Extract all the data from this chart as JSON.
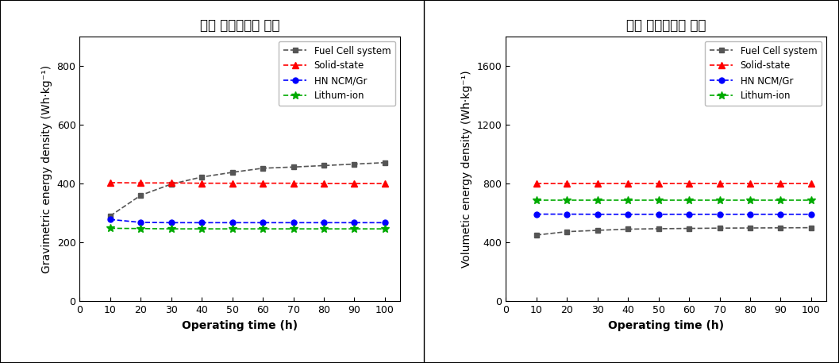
{
  "left_title": "질량 에너지밀도 예측",
  "right_title": "부피 에너지밀도 예측",
  "xlabel": "Operating time (h)",
  "left_ylabel": "Gravimetric energy density (Wh·kg⁻¹)",
  "right_ylabel": "Volumetic energy density (Wh·kg⁻¹)",
  "x": [
    10,
    20,
    30,
    40,
    50,
    60,
    70,
    80,
    90,
    100
  ],
  "left_fuel_cell": [
    290,
    360,
    398,
    422,
    438,
    452,
    456,
    461,
    466,
    471
  ],
  "left_solid_state": [
    403,
    402,
    402,
    401,
    401,
    401,
    401,
    400,
    400,
    400
  ],
  "left_hn_ncm": [
    278,
    268,
    267,
    267,
    267,
    267,
    267,
    267,
    267,
    267
  ],
  "left_lithium_ion": [
    248,
    247,
    246,
    246,
    246,
    246,
    246,
    246,
    246,
    246
  ],
  "right_fuel_cell": [
    450,
    473,
    482,
    490,
    493,
    495,
    497,
    498,
    499,
    500
  ],
  "right_solid_state": [
    800,
    800,
    800,
    800,
    800,
    800,
    800,
    800,
    800,
    800
  ],
  "right_hn_ncm": [
    592,
    592,
    591,
    591,
    591,
    591,
    591,
    591,
    591,
    591
  ],
  "right_lithium_ion": [
    685,
    685,
    685,
    685,
    685,
    685,
    685,
    685,
    685,
    685
  ],
  "colors": {
    "fuel_cell": "#555555",
    "solid_state": "#ff0000",
    "hn_ncm": "#0000ff",
    "lithium_ion": "#00aa00"
  },
  "left_ylim": [
    0,
    900
  ],
  "right_ylim": [
    0,
    1800
  ],
  "left_yticks": [
    0,
    200,
    400,
    600,
    800
  ],
  "right_yticks": [
    0,
    400,
    800,
    1200,
    1600
  ],
  "xticks": [
    0,
    10,
    20,
    30,
    40,
    50,
    60,
    70,
    80,
    90,
    100
  ],
  "legend_labels": [
    "Fuel Cell system",
    "Solid-state",
    "HN NCM/Gr",
    "Lithum-ion"
  ],
  "title_fontsize": 12,
  "label_fontsize": 10,
  "tick_fontsize": 9,
  "legend_fontsize": 8.5
}
